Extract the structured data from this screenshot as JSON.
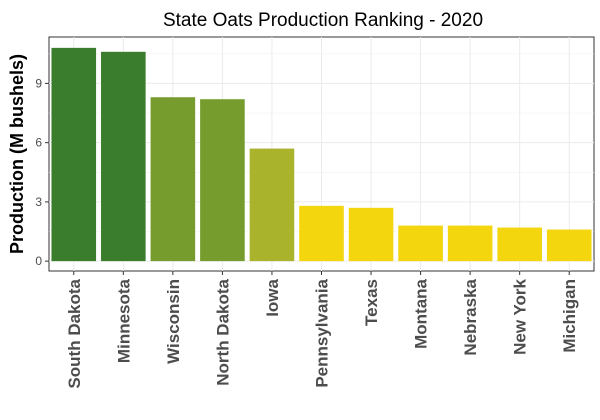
{
  "chart_data": {
    "type": "bar",
    "title": "State Oats Production Ranking - 2020",
    "xlabel": "",
    "ylabel": "Production (M bushels)",
    "categories": [
      "South Dakota",
      "Minnesota",
      "Wisconsin",
      "North Dakota",
      "Iowa",
      "Pennsylvania",
      "Texas",
      "Montana",
      "Nebraska",
      "New York",
      "Michigan"
    ],
    "values": [
      10.8,
      10.6,
      8.3,
      8.2,
      5.7,
      2.8,
      2.7,
      1.8,
      1.8,
      1.7,
      1.6
    ],
    "bar_colors": [
      "#3a7d2c",
      "#3a7d2c",
      "#779c2e",
      "#779c2e",
      "#a9b32b",
      "#f3d60e",
      "#f3d60e",
      "#f3d60e",
      "#f3d60e",
      "#f3d60e",
      "#f3d60e"
    ],
    "yticks": [
      0,
      3,
      6,
      9
    ],
    "ylim": [
      -0.5,
      11.35
    ],
    "grid": true,
    "legend": "none"
  }
}
